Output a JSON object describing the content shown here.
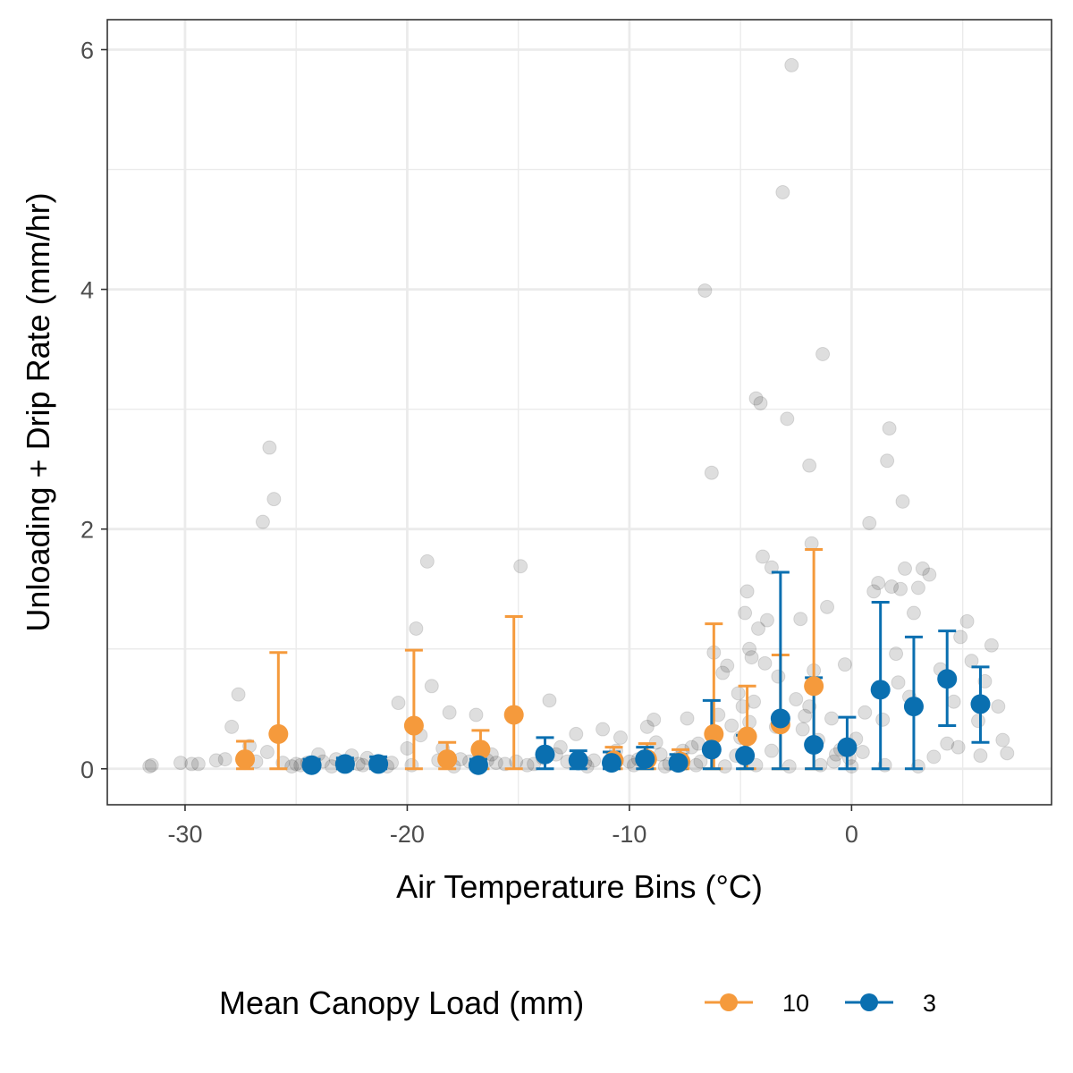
{
  "chart_data": {
    "type": "scatter",
    "xlabel": "Air Temperature Bins (°C)",
    "ylabel": "Unloading + Drip Rate (mm/hr)",
    "xlim": [
      -33.5,
      9
    ],
    "ylim": [
      -0.3,
      6.25
    ],
    "xticks": [
      -30,
      -20,
      -10,
      0
    ],
    "xtick_labels": [
      "-30",
      "-20",
      "-10",
      "0"
    ],
    "yticks": [
      0,
      2,
      4,
      6
    ],
    "ytick_labels": [
      "0",
      "2",
      "4",
      "6"
    ],
    "grid": true,
    "legend": {
      "title": "Mean Canopy Load (mm)",
      "position": "bottom",
      "entries": [
        {
          "label": "10",
          "color": "#f59a3c"
        },
        {
          "label": "3",
          "color": "#0a6fb0"
        }
      ]
    },
    "series": [
      {
        "name": "10",
        "color": "#f59a3c",
        "points": [
          {
            "x": -27.3,
            "y": 0.08,
            "lo": 0.0,
            "hi": 0.23
          },
          {
            "x": -25.8,
            "y": 0.29,
            "lo": 0.0,
            "hi": 0.97
          },
          {
            "x": -19.7,
            "y": 0.36,
            "lo": 0.0,
            "hi": 0.99
          },
          {
            "x": -18.2,
            "y": 0.08,
            "lo": 0.0,
            "hi": 0.22
          },
          {
            "x": -16.7,
            "y": 0.16,
            "lo": 0.0,
            "hi": 0.32
          },
          {
            "x": -15.2,
            "y": 0.45,
            "lo": 0.0,
            "hi": 1.27
          },
          {
            "x": -10.7,
            "y": 0.07,
            "lo": 0.0,
            "hi": 0.18
          },
          {
            "x": -9.2,
            "y": 0.08,
            "lo": 0.0,
            "hi": 0.21
          },
          {
            "x": -7.7,
            "y": 0.06,
            "lo": 0.0,
            "hi": 0.16
          },
          {
            "x": -6.2,
            "y": 0.29,
            "lo": 0.0,
            "hi": 1.21
          },
          {
            "x": -4.7,
            "y": 0.27,
            "lo": 0.0,
            "hi": 0.69
          },
          {
            "x": -3.2,
            "y": 0.37,
            "lo": 0.0,
            "hi": 0.95
          },
          {
            "x": -1.7,
            "y": 0.69,
            "lo": 0.0,
            "hi": 1.83
          }
        ]
      },
      {
        "name": "3",
        "color": "#0a6fb0",
        "points": [
          {
            "x": -24.3,
            "y": 0.03,
            "lo": 0.0,
            "hi": 0.08
          },
          {
            "x": -22.8,
            "y": 0.04,
            "lo": 0.0,
            "hi": 0.09
          },
          {
            "x": -21.3,
            "y": 0.04,
            "lo": 0.0,
            "hi": 0.1
          },
          {
            "x": -16.8,
            "y": 0.03,
            "lo": 0.0,
            "hi": 0.08
          },
          {
            "x": -13.8,
            "y": 0.12,
            "lo": 0.0,
            "hi": 0.26
          },
          {
            "x": -12.3,
            "y": 0.07,
            "lo": 0.0,
            "hi": 0.15
          },
          {
            "x": -10.8,
            "y": 0.05,
            "lo": 0.0,
            "hi": 0.14
          },
          {
            "x": -9.3,
            "y": 0.08,
            "lo": 0.0,
            "hi": 0.18
          },
          {
            "x": -7.8,
            "y": 0.05,
            "lo": 0.0,
            "hi": 0.12
          },
          {
            "x": -6.3,
            "y": 0.16,
            "lo": 0.0,
            "hi": 0.57
          },
          {
            "x": -4.8,
            "y": 0.11,
            "lo": 0.0,
            "hi": 0.28
          },
          {
            "x": -3.2,
            "y": 0.42,
            "lo": 0.0,
            "hi": 1.64
          },
          {
            "x": -1.7,
            "y": 0.2,
            "lo": 0.0,
            "hi": 0.76
          },
          {
            "x": -0.2,
            "y": 0.18,
            "lo": 0.0,
            "hi": 0.43
          },
          {
            "x": 1.3,
            "y": 0.66,
            "lo": 0.0,
            "hi": 1.39
          },
          {
            "x": 2.8,
            "y": 0.52,
            "lo": 0.0,
            "hi": 1.1
          },
          {
            "x": 4.3,
            "y": 0.75,
            "lo": 0.36,
            "hi": 1.15
          },
          {
            "x": 5.8,
            "y": 0.54,
            "lo": 0.22,
            "hi": 0.85
          }
        ]
      }
    ],
    "raw_points": {
      "color": "#000000",
      "opacity": 0.13,
      "points": [
        [
          -31.6,
          0.02
        ],
        [
          -31.5,
          0.03
        ],
        [
          -30.2,
          0.05
        ],
        [
          -29.7,
          0.04
        ],
        [
          -29.4,
          0.04
        ],
        [
          -28.2,
          0.08
        ],
        [
          -27.9,
          0.35
        ],
        [
          -27.6,
          0.62
        ],
        [
          -27.3,
          0.05
        ],
        [
          -26.8,
          0.06
        ],
        [
          -26.5,
          2.06
        ],
        [
          -26.2,
          2.68
        ],
        [
          -26.0,
          2.25
        ],
        [
          -25.6,
          0.05
        ],
        [
          -25.0,
          0.04
        ],
        [
          -24.5,
          0.05
        ],
        [
          -24.0,
          0.12
        ],
        [
          -23.8,
          0.06
        ],
        [
          -23.2,
          0.08
        ],
        [
          -22.7,
          0.05
        ],
        [
          -22.2,
          0.04
        ],
        [
          -21.8,
          0.09
        ],
        [
          -21.2,
          0.06
        ],
        [
          -20.7,
          0.05
        ],
        [
          -20.4,
          0.55
        ],
        [
          -20.0,
          0.17
        ],
        [
          -19.6,
          1.17
        ],
        [
          -19.4,
          0.28
        ],
        [
          -19.1,
          1.73
        ],
        [
          -18.9,
          0.69
        ],
        [
          -18.6,
          0.07
        ],
        [
          -18.1,
          0.47
        ],
        [
          -17.6,
          0.08
        ],
        [
          -17.2,
          0.06
        ],
        [
          -16.9,
          0.45
        ],
        [
          -16.4,
          0.07
        ],
        [
          -16.0,
          0.05
        ],
        [
          -15.6,
          0.04
        ],
        [
          -15.1,
          0.06
        ],
        [
          -14.9,
          1.69
        ],
        [
          -14.3,
          0.04
        ],
        [
          -13.9,
          0.09
        ],
        [
          -13.6,
          0.57
        ],
        [
          -13.3,
          0.12
        ],
        [
          -12.8,
          0.06
        ],
        [
          -12.4,
          0.29
        ],
        [
          -12.0,
          0.05
        ],
        [
          -11.6,
          0.07
        ],
        [
          -11.2,
          0.33
        ],
        [
          -10.8,
          0.09
        ],
        [
          -10.4,
          0.26
        ],
        [
          -10.0,
          0.06
        ],
        [
          -9.6,
          0.08
        ],
        [
          -9.2,
          0.35
        ],
        [
          -8.9,
          0.41
        ],
        [
          -8.6,
          0.12
        ],
        [
          -8.2,
          0.04
        ],
        [
          -7.8,
          0.09
        ],
        [
          -7.4,
          0.42
        ],
        [
          -7.2,
          0.18
        ],
        [
          -6.8,
          0.06
        ],
        [
          -6.6,
          3.99
        ],
        [
          -6.3,
          2.47
        ],
        [
          -6.2,
          0.97
        ],
        [
          -6.0,
          0.45
        ],
        [
          -5.8,
          0.8
        ],
        [
          -5.6,
          0.86
        ],
        [
          -5.4,
          0.36
        ],
        [
          -5.2,
          0.11
        ],
        [
          -5.0,
          0.26
        ],
        [
          -4.9,
          0.52
        ],
        [
          -4.8,
          1.3
        ],
        [
          -4.7,
          1.48
        ],
        [
          -4.6,
          1.0
        ],
        [
          -4.5,
          0.93
        ],
        [
          -4.4,
          0.56
        ],
        [
          -4.3,
          3.09
        ],
        [
          -4.2,
          1.17
        ],
        [
          -4.1,
          3.05
        ],
        [
          -4.0,
          1.77
        ],
        [
          -3.9,
          0.88
        ],
        [
          -3.8,
          1.24
        ],
        [
          -3.6,
          1.68
        ],
        [
          -3.4,
          0.35
        ],
        [
          -3.2,
          0.42
        ],
        [
          -3.1,
          4.81
        ],
        [
          -2.9,
          2.92
        ],
        [
          -2.7,
          5.87
        ],
        [
          -2.5,
          0.58
        ],
        [
          -2.3,
          1.25
        ],
        [
          -2.1,
          0.44
        ],
        [
          -1.9,
          2.53
        ],
        [
          -1.8,
          1.88
        ],
        [
          -1.7,
          0.82
        ],
        [
          -1.5,
          0.24
        ],
        [
          -1.3,
          3.46
        ],
        [
          -1.1,
          1.35
        ],
        [
          -0.9,
          0.42
        ],
        [
          -0.7,
          0.12
        ],
        [
          -0.5,
          0.16
        ],
        [
          -0.3,
          0.87
        ],
        [
          -0.1,
          0.09
        ],
        [
          0.2,
          0.25
        ],
        [
          0.5,
          0.14
        ],
        [
          0.8,
          2.05
        ],
        [
          1.0,
          1.48
        ],
        [
          1.2,
          1.55
        ],
        [
          1.4,
          0.41
        ],
        [
          1.6,
          2.57
        ],
        [
          1.7,
          2.84
        ],
        [
          1.8,
          1.52
        ],
        [
          2.0,
          0.96
        ],
        [
          2.2,
          1.5
        ],
        [
          2.3,
          2.23
        ],
        [
          2.4,
          1.67
        ],
        [
          2.6,
          0.6
        ],
        [
          2.8,
          1.3
        ],
        [
          3.0,
          1.51
        ],
        [
          3.2,
          1.67
        ],
        [
          3.5,
          1.62
        ],
        [
          3.7,
          0.1
        ],
        [
          4.0,
          0.83
        ],
        [
          4.3,
          0.21
        ],
        [
          4.6,
          0.56
        ],
        [
          4.9,
          1.1
        ],
        [
          5.2,
          1.23
        ],
        [
          5.4,
          0.9
        ],
        [
          5.7,
          0.4
        ],
        [
          6.0,
          0.73
        ],
        [
          6.3,
          1.03
        ],
        [
          6.6,
          0.52
        ],
        [
          6.8,
          0.24
        ],
        [
          7.0,
          0.13
        ],
        [
          5.8,
          0.11
        ],
        [
          4.8,
          0.18
        ],
        [
          -25.2,
          0.02
        ],
        [
          -24.8,
          0.03
        ],
        [
          -23.4,
          0.02
        ],
        [
          -22.0,
          0.03
        ],
        [
          -20.9,
          0.02
        ],
        [
          -19.8,
          0.03
        ],
        [
          -17.9,
          0.02
        ],
        [
          -14.6,
          0.03
        ],
        [
          -11.9,
          0.02
        ],
        [
          -9.8,
          0.03
        ],
        [
          -8.4,
          0.02
        ],
        [
          -7.0,
          0.03
        ],
        [
          -5.7,
          0.02
        ],
        [
          -4.3,
          0.03
        ],
        [
          -2.8,
          0.02
        ],
        [
          -1.4,
          0.03
        ],
        [
          0.0,
          0.02
        ],
        [
          1.5,
          0.03
        ],
        [
          3.0,
          0.02
        ],
        [
          -3.6,
          0.15
        ],
        [
          -2.2,
          0.33
        ],
        [
          -0.8,
          0.06
        ],
        [
          0.6,
          0.47
        ],
        [
          2.1,
          0.72
        ],
        [
          -6.9,
          0.21
        ],
        [
          -5.1,
          0.63
        ],
        [
          -4.6,
          0.39
        ],
        [
          -3.3,
          0.77
        ],
        [
          -1.9,
          0.52
        ],
        [
          -13.1,
          0.18
        ],
        [
          -10.6,
          0.15
        ],
        [
          -8.8,
          0.22
        ],
        [
          -7.6,
          0.15
        ],
        [
          -16.2,
          0.12
        ],
        [
          -18.4,
          0.17
        ],
        [
          -22.5,
          0.11
        ],
        [
          -26.3,
          0.14
        ],
        [
          -28.6,
          0.07
        ],
        [
          -27.1,
          0.19
        ]
      ]
    }
  }
}
